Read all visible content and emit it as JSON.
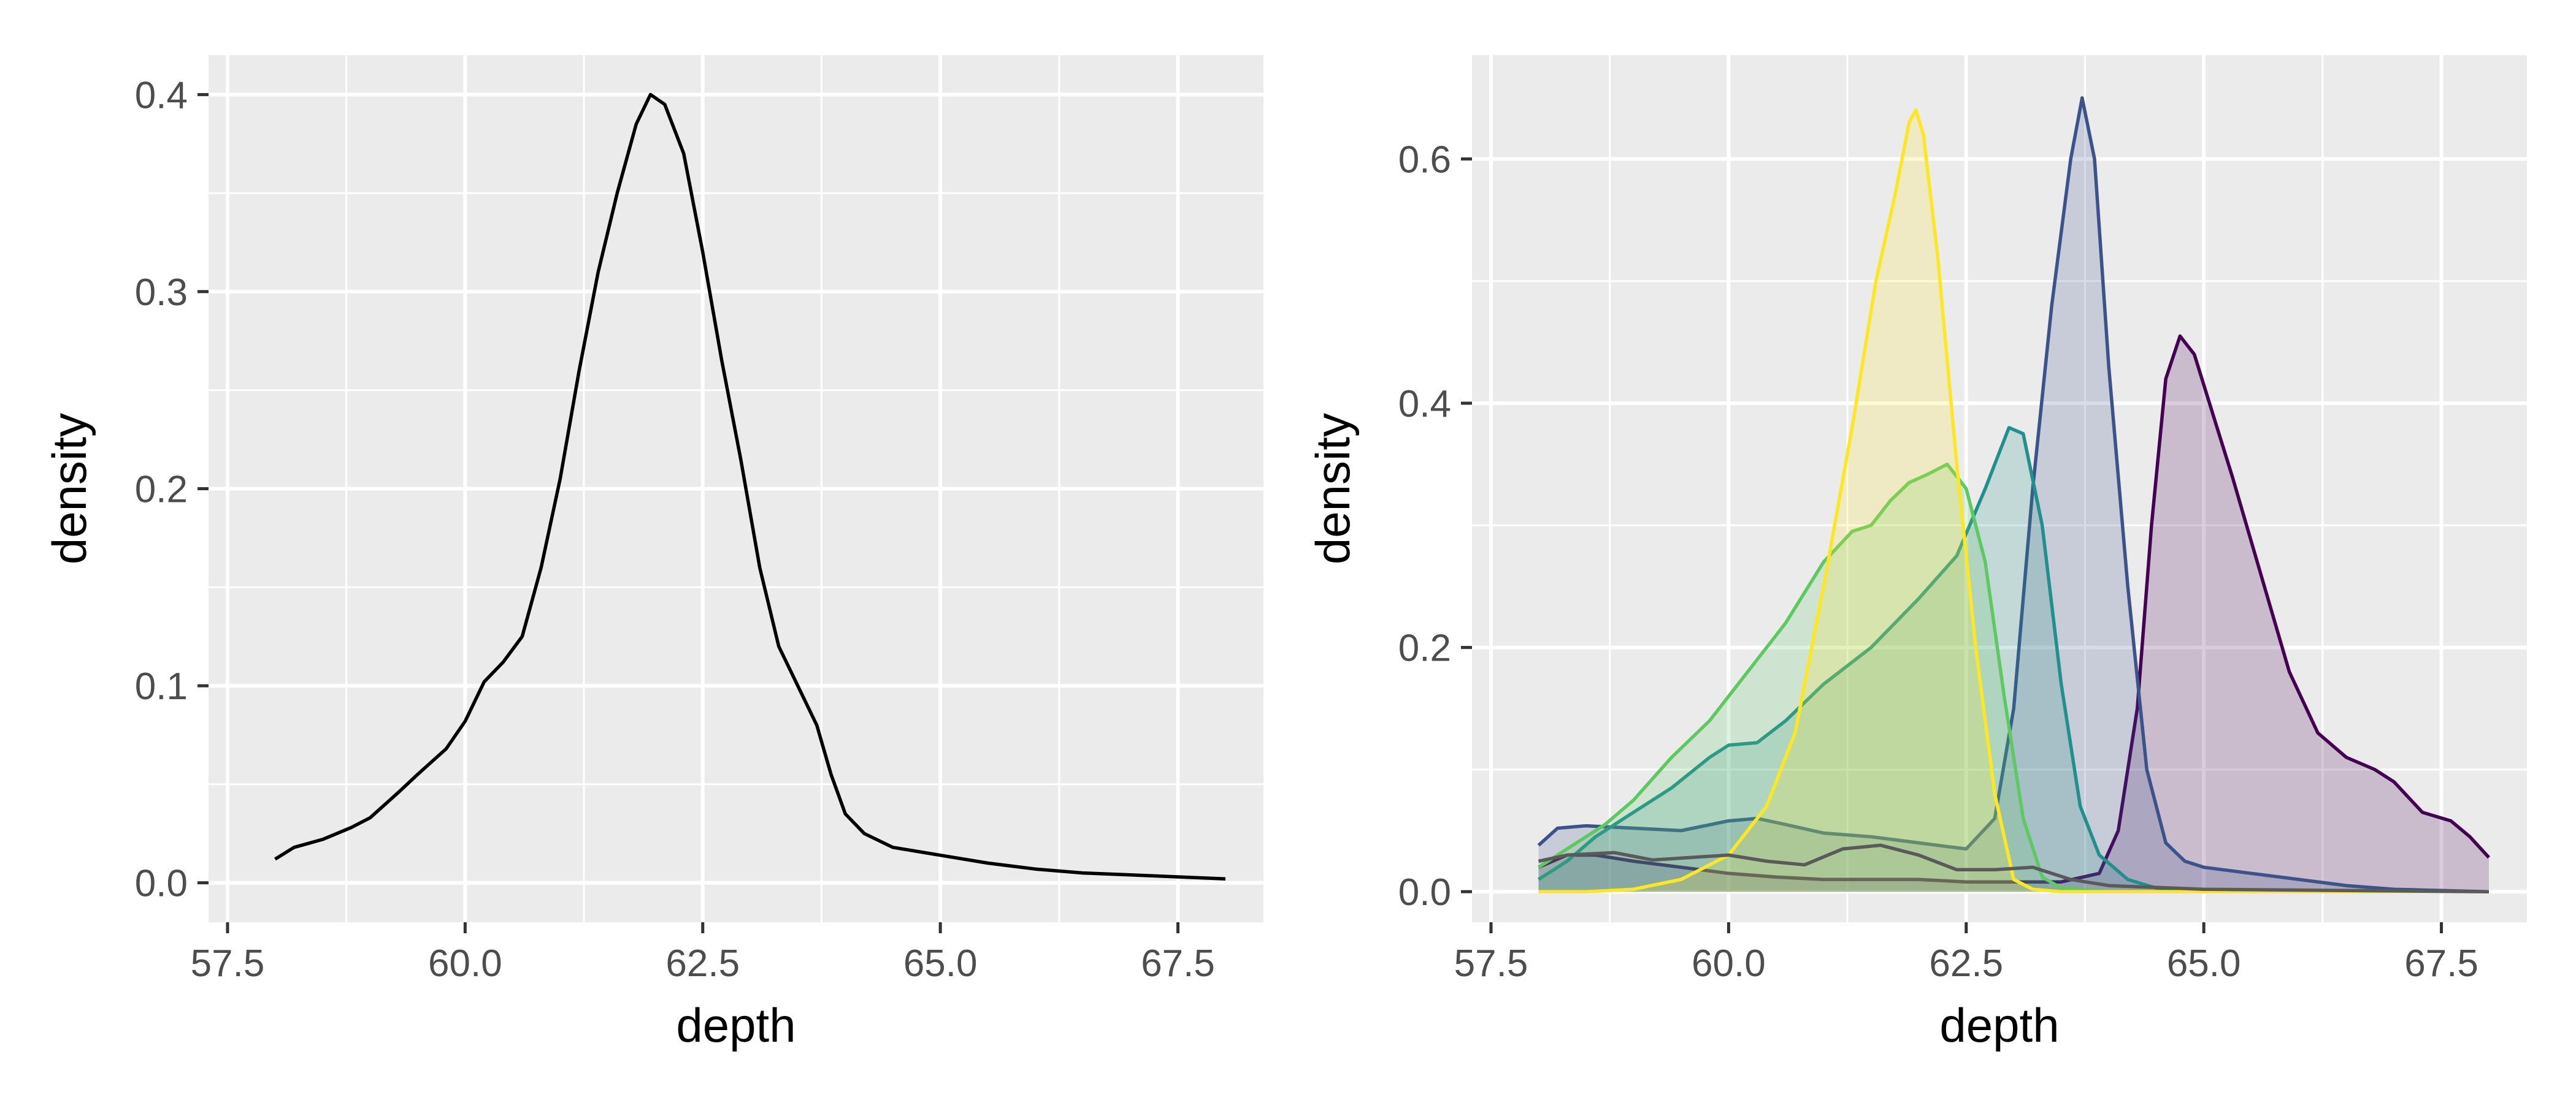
{
  "chart_data": [
    {
      "type": "area",
      "title": "",
      "xlabel": "depth",
      "ylabel": "density",
      "xlim": [
        57.3,
        68.4
      ],
      "ylim": [
        -0.02,
        0.42
      ],
      "x_ticks": [
        "57.5",
        "60.0",
        "62.5",
        "65.0",
        "67.5"
      ],
      "x_tick_values": [
        57.5,
        60.0,
        62.5,
        65.0,
        67.5
      ],
      "y_ticks": [
        "0.0",
        "0.1",
        "0.2",
        "0.3",
        "0.4"
      ],
      "y_tick_values": [
        0.0,
        0.1,
        0.2,
        0.3,
        0.4
      ],
      "grid": true,
      "legend": "none",
      "series": [
        {
          "color": "#000000",
          "fill": "none",
          "points": [
            [
              58.0,
              0.012
            ],
            [
              58.2,
              0.018
            ],
            [
              58.5,
              0.022
            ],
            [
              58.8,
              0.028
            ],
            [
              59.0,
              0.033
            ],
            [
              59.3,
              0.046
            ],
            [
              59.5,
              0.055
            ],
            [
              59.8,
              0.068
            ],
            [
              60.0,
              0.082
            ],
            [
              60.2,
              0.102
            ],
            [
              60.4,
              0.112
            ],
            [
              60.6,
              0.125
            ],
            [
              60.8,
              0.16
            ],
            [
              61.0,
              0.205
            ],
            [
              61.2,
              0.26
            ],
            [
              61.4,
              0.31
            ],
            [
              61.6,
              0.35
            ],
            [
              61.8,
              0.385
            ],
            [
              61.95,
              0.4
            ],
            [
              62.1,
              0.395
            ],
            [
              62.3,
              0.37
            ],
            [
              62.5,
              0.32
            ],
            [
              62.7,
              0.265
            ],
            [
              62.9,
              0.215
            ],
            [
              63.1,
              0.16
            ],
            [
              63.3,
              0.12
            ],
            [
              63.5,
              0.1
            ],
            [
              63.7,
              0.08
            ],
            [
              63.85,
              0.055
            ],
            [
              64.0,
              0.035
            ],
            [
              64.2,
              0.025
            ],
            [
              64.5,
              0.018
            ],
            [
              65.0,
              0.014
            ],
            [
              65.5,
              0.01
            ],
            [
              66.0,
              0.007
            ],
            [
              66.5,
              0.005
            ],
            [
              67.0,
              0.004
            ],
            [
              67.5,
              0.003
            ],
            [
              68.0,
              0.002
            ]
          ]
        }
      ]
    },
    {
      "type": "area",
      "title": "",
      "xlabel": "depth",
      "ylabel": "density",
      "xlim": [
        57.3,
        68.4
      ],
      "ylim": [
        -0.025,
        0.685
      ],
      "x_ticks": [
        "57.5",
        "60.0",
        "62.5",
        "65.0",
        "67.5"
      ],
      "x_tick_values": [
        57.5,
        60.0,
        62.5,
        65.0,
        67.5
      ],
      "y_ticks": [
        "0.0",
        "0.2",
        "0.4",
        "0.6"
      ],
      "y_tick_values": [
        0.0,
        0.2,
        0.4,
        0.6
      ],
      "grid": true,
      "legend": "none",
      "series": [
        {
          "color": "#440154",
          "fill": "#440154",
          "points": [
            [
              58.0,
              0.02
            ],
            [
              58.3,
              0.03
            ],
            [
              58.6,
              0.03
            ],
            [
              59.0,
              0.025
            ],
            [
              59.5,
              0.02
            ],
            [
              60.0,
              0.015
            ],
            [
              60.5,
              0.012
            ],
            [
              61.0,
              0.01
            ],
            [
              61.5,
              0.01
            ],
            [
              62.0,
              0.01
            ],
            [
              62.5,
              0.008
            ],
            [
              63.0,
              0.008
            ],
            [
              63.5,
              0.008
            ],
            [
              63.9,
              0.015
            ],
            [
              64.1,
              0.05
            ],
            [
              64.3,
              0.15
            ],
            [
              64.45,
              0.3
            ],
            [
              64.6,
              0.42
            ],
            [
              64.75,
              0.455
            ],
            [
              64.9,
              0.44
            ],
            [
              65.1,
              0.39
            ],
            [
              65.3,
              0.34
            ],
            [
              65.6,
              0.26
            ],
            [
              65.9,
              0.18
            ],
            [
              66.2,
              0.13
            ],
            [
              66.5,
              0.11
            ],
            [
              66.8,
              0.1
            ],
            [
              67.0,
              0.09
            ],
            [
              67.3,
              0.065
            ],
            [
              67.6,
              0.058
            ],
            [
              67.8,
              0.045
            ],
            [
              68.0,
              0.028
            ]
          ]
        },
        {
          "color": "#3b528b",
          "fill": "#3b528b",
          "points": [
            [
              58.0,
              0.038
            ],
            [
              58.2,
              0.052
            ],
            [
              58.5,
              0.054
            ],
            [
              59.0,
              0.052
            ],
            [
              59.5,
              0.05
            ],
            [
              60.0,
              0.058
            ],
            [
              60.3,
              0.06
            ],
            [
              60.6,
              0.055
            ],
            [
              61.0,
              0.048
            ],
            [
              61.5,
              0.045
            ],
            [
              62.0,
              0.04
            ],
            [
              62.5,
              0.035
            ],
            [
              62.8,
              0.06
            ],
            [
              63.0,
              0.15
            ],
            [
              63.2,
              0.33
            ],
            [
              63.4,
              0.48
            ],
            [
              63.6,
              0.6
            ],
            [
              63.72,
              0.65
            ],
            [
              63.85,
              0.6
            ],
            [
              64.0,
              0.43
            ],
            [
              64.2,
              0.25
            ],
            [
              64.4,
              0.1
            ],
            [
              64.6,
              0.04
            ],
            [
              64.8,
              0.025
            ],
            [
              65.0,
              0.02
            ],
            [
              65.5,
              0.015
            ],
            [
              66.0,
              0.01
            ],
            [
              66.5,
              0.005
            ],
            [
              67.0,
              0.002
            ],
            [
              68.0,
              0.0
            ]
          ]
        },
        {
          "color": "#21908d",
          "fill": "#21908d",
          "points": [
            [
              58.0,
              0.01
            ],
            [
              58.3,
              0.025
            ],
            [
              58.6,
              0.045
            ],
            [
              59.0,
              0.065
            ],
            [
              59.4,
              0.085
            ],
            [
              59.8,
              0.11
            ],
            [
              60.0,
              0.12
            ],
            [
              60.3,
              0.122
            ],
            [
              60.6,
              0.14
            ],
            [
              61.0,
              0.17
            ],
            [
              61.5,
              0.2
            ],
            [
              62.0,
              0.24
            ],
            [
              62.4,
              0.275
            ],
            [
              62.7,
              0.33
            ],
            [
              62.95,
              0.38
            ],
            [
              63.1,
              0.375
            ],
            [
              63.3,
              0.3
            ],
            [
              63.5,
              0.17
            ],
            [
              63.7,
              0.07
            ],
            [
              63.9,
              0.03
            ],
            [
              64.2,
              0.01
            ],
            [
              64.5,
              0.003
            ],
            [
              65.0,
              0.0
            ],
            [
              68.0,
              0.0
            ]
          ]
        },
        {
          "color": "#5ec962",
          "fill": "#5ec962",
          "points": [
            [
              58.0,
              0.02
            ],
            [
              58.3,
              0.035
            ],
            [
              58.7,
              0.055
            ],
            [
              59.0,
              0.075
            ],
            [
              59.4,
              0.11
            ],
            [
              59.8,
              0.14
            ],
            [
              60.2,
              0.18
            ],
            [
              60.6,
              0.22
            ],
            [
              61.0,
              0.27
            ],
            [
              61.3,
              0.295
            ],
            [
              61.5,
              0.3
            ],
            [
              61.7,
              0.32
            ],
            [
              61.9,
              0.335
            ],
            [
              62.1,
              0.342
            ],
            [
              62.3,
              0.35
            ],
            [
              62.5,
              0.33
            ],
            [
              62.7,
              0.27
            ],
            [
              62.9,
              0.16
            ],
            [
              63.1,
              0.06
            ],
            [
              63.3,
              0.012
            ],
            [
              63.5,
              0.003
            ],
            [
              64.0,
              0.0
            ],
            [
              68.0,
              0.0
            ]
          ]
        },
        {
          "color": "#fde725",
          "fill": "#fde725",
          "points": [
            [
              58.0,
              0.0
            ],
            [
              58.5,
              0.0
            ],
            [
              59.0,
              0.002
            ],
            [
              59.5,
              0.01
            ],
            [
              60.0,
              0.03
            ],
            [
              60.4,
              0.07
            ],
            [
              60.7,
              0.13
            ],
            [
              61.0,
              0.25
            ],
            [
              61.3,
              0.38
            ],
            [
              61.55,
              0.5
            ],
            [
              61.75,
              0.57
            ],
            [
              61.9,
              0.63
            ],
            [
              61.97,
              0.64
            ],
            [
              62.05,
              0.62
            ],
            [
              62.2,
              0.52
            ],
            [
              62.4,
              0.35
            ],
            [
              62.6,
              0.2
            ],
            [
              62.8,
              0.08
            ],
            [
              63.0,
              0.01
            ],
            [
              63.2,
              0.002
            ],
            [
              63.5,
              0.0
            ],
            [
              68.0,
              0.0
            ]
          ]
        },
        {
          "color": "#5a5a5a",
          "fill": "none",
          "points": [
            [
              58.0,
              0.025
            ],
            [
              58.3,
              0.03
            ],
            [
              58.8,
              0.032
            ],
            [
              59.2,
              0.026
            ],
            [
              59.6,
              0.028
            ],
            [
              60.0,
              0.03
            ],
            [
              60.4,
              0.025
            ],
            [
              60.8,
              0.022
            ],
            [
              61.2,
              0.035
            ],
            [
              61.6,
              0.038
            ],
            [
              62.0,
              0.03
            ],
            [
              62.4,
              0.018
            ],
            [
              62.8,
              0.018
            ],
            [
              63.2,
              0.02
            ],
            [
              63.6,
              0.01
            ],
            [
              64.0,
              0.005
            ],
            [
              65.0,
              0.002
            ],
            [
              68.0,
              0.0
            ]
          ]
        }
      ]
    }
  ]
}
